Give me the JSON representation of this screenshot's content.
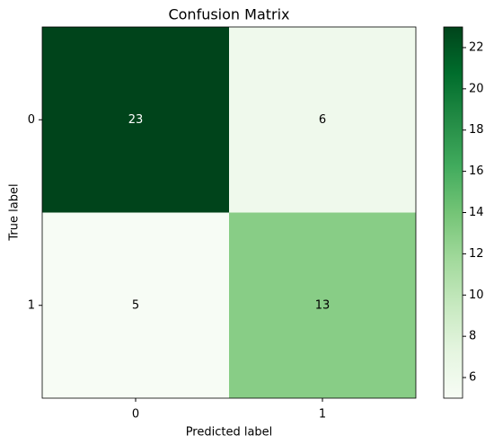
{
  "chart_data": {
    "type": "heatmap",
    "title": "Confusion Matrix",
    "x_label": "Predicted label",
    "y_label": "True label",
    "x_categories": [
      "0",
      "1"
    ],
    "y_categories": [
      "0",
      "1"
    ],
    "values": [
      [
        23,
        6
      ],
      [
        5,
        13
      ]
    ],
    "colormap": "Greens",
    "clim": [
      5,
      23
    ],
    "colorbar_ticks": [
      6,
      8,
      10,
      12,
      14,
      16,
      18,
      20,
      22
    ]
  }
}
